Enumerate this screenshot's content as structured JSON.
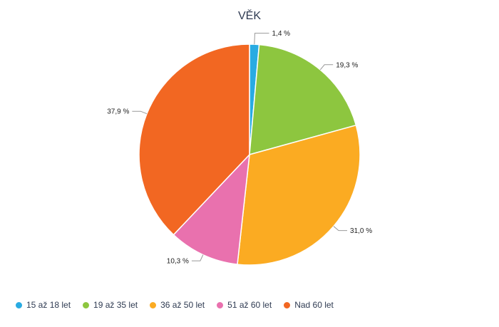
{
  "chart_data": {
    "type": "pie",
    "title": "VĚK",
    "legend_position": "bottom-left",
    "slices": [
      {
        "name": "15 až 18 let",
        "value": 1.4,
        "label": "1,4 %",
        "color": "#29abe2"
      },
      {
        "name": "19 až 35 let",
        "value": 19.3,
        "label": "19,3 %",
        "color": "#8dc63f"
      },
      {
        "name": "36 až 50 let",
        "value": 31.0,
        "label": "31,0 %",
        "color": "#fbab22"
      },
      {
        "name": "51 až 60 let",
        "value": 10.3,
        "label": "10,3 %",
        "color": "#e971ae"
      },
      {
        "name": "Nad 60 let",
        "value": 37.9,
        "label": "37,9 %",
        "color": "#f26722"
      }
    ]
  }
}
